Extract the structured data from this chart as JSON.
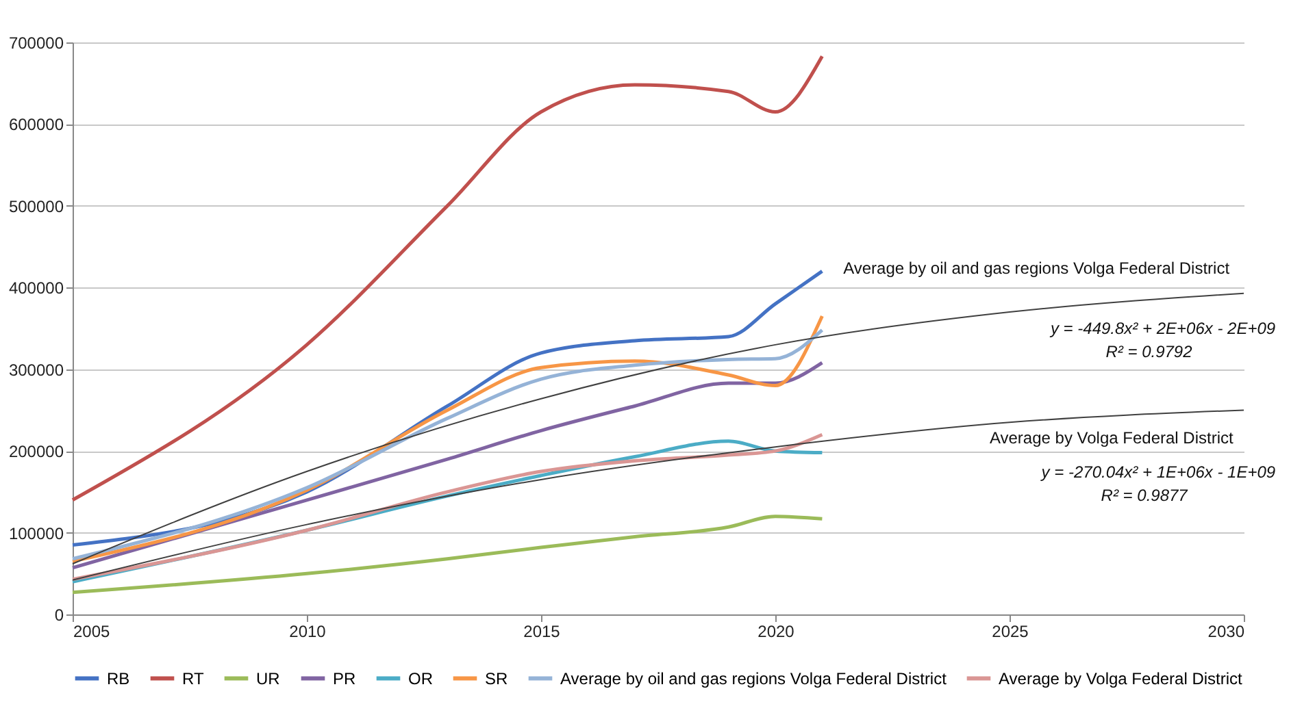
{
  "chart_data": {
    "type": "line",
    "xlim": [
      2005,
      2030
    ],
    "xticks": [
      2005,
      2010,
      2015,
      2020,
      2025,
      2030
    ],
    "ylim": [
      0,
      700000
    ],
    "yticks": [
      0,
      100000,
      200000,
      300000,
      400000,
      500000,
      600000,
      700000
    ],
    "grid": "y",
    "legend": "bottom",
    "marker": "none",
    "line_style": "solid",
    "x": [
      2005,
      2010,
      2013,
      2015,
      2017,
      2019,
      2020,
      2021
    ],
    "series": [
      {
        "name": "RB",
        "color": "#4472c4",
        "values": [
          85000,
          150000,
          255000,
          320000,
          335000,
          340000,
          380000,
          420000
        ]
      },
      {
        "name": "RT",
        "color": "#c0504d",
        "values": [
          140000,
          330000,
          500000,
          615000,
          648000,
          640000,
          615000,
          683000
        ]
      },
      {
        "name": "UR",
        "color": "#9bbb59",
        "values": [
          27000,
          50000,
          68000,
          82000,
          95000,
          107000,
          120000,
          117000
        ]
      },
      {
        "name": "PR",
        "color": "#8064a2",
        "values": [
          57000,
          140000,
          190000,
          225000,
          255000,
          283000,
          283000,
          308000
        ]
      },
      {
        "name": "OR",
        "color": "#4bacc6",
        "values": [
          40000,
          103000,
          145000,
          170000,
          193000,
          212000,
          200000,
          198000
        ]
      },
      {
        "name": "SR",
        "color": "#f79646",
        "values": [
          65000,
          152000,
          250000,
          302000,
          310000,
          293000,
          280000,
          365000
        ]
      },
      {
        "name": "Average by oil and gas regions Volga Federal District",
        "color": "#95b3d7",
        "values": [
          68000,
          155000,
          240000,
          288000,
          305000,
          312000,
          313000,
          348000
        ]
      },
      {
        "name": "Average by Volga Federal District",
        "color": "#da9694",
        "values": [
          43000,
          103000,
          150000,
          175000,
          188000,
          195000,
          200000,
          220000
        ]
      },
      {
        "type": "line",
        "color": "#404040",
        "x": [
          2005,
          2010,
          2015,
          2020,
          2025,
          2030
        ],
        "values": [
          62000,
          175000,
          264000,
          330000,
          370000,
          393000
        ]
      },
      {
        "type": "line",
        "color": "#404040",
        "x": [
          2005,
          2010,
          2015,
          2020,
          2025,
          2030
        ],
        "values": [
          42000,
          110000,
          165000,
          205000,
          235000,
          250000
        ]
      }
    ],
    "annotations": [
      "Average by oil and gas regions Volga Federal District",
      "y = -449.8x² + 2E+06x - 2E+09",
      "R² = 0.9792",
      "Average by Volga Federal District",
      "y = -270.04x² + 1E+06x - 1E+09",
      "R² = 0.9877"
    ]
  }
}
